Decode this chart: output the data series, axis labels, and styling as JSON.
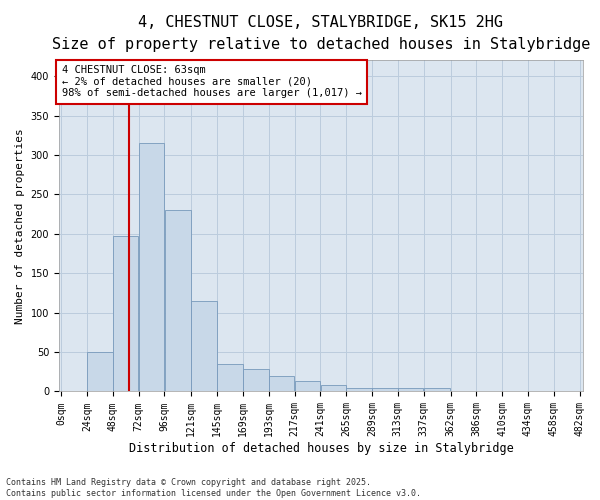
{
  "title_line1": "4, CHESTNUT CLOSE, STALYBRIDGE, SK15 2HG",
  "title_line2": "Size of property relative to detached houses in Stalybridge",
  "xlabel": "Distribution of detached houses by size in Stalybridge",
  "ylabel": "Number of detached properties",
  "footnote": "Contains HM Land Registry data © Crown copyright and database right 2025.\nContains public sector information licensed under the Open Government Licence v3.0.",
  "annotation_title": "4 CHESTNUT CLOSE: 63sqm",
  "annotation_line2": "← 2% of detached houses are smaller (20)",
  "annotation_line3": "98% of semi-detached houses are larger (1,017) →",
  "property_size": 63,
  "bin_edges": [
    0,
    24,
    48,
    72,
    96,
    121,
    145,
    169,
    193,
    217,
    241,
    265,
    289,
    313,
    337,
    362,
    386,
    410,
    434,
    458,
    482
  ],
  "bar_heights": [
    0,
    50,
    197,
    315,
    230,
    115,
    35,
    28,
    20,
    13,
    8,
    5,
    5,
    4,
    4,
    1,
    1,
    0,
    0,
    1
  ],
  "bar_color": "#c8d8e8",
  "bar_edge_color": "#7799bb",
  "vline_color": "#cc0000",
  "annotation_box_color": "#cc0000",
  "annotation_bg": "#ffffff",
  "grid_color": "#bbccdd",
  "background_color": "#dce6f0",
  "ylim": [
    0,
    420
  ],
  "yticks": [
    0,
    50,
    100,
    150,
    200,
    250,
    300,
    350,
    400
  ],
  "title_fontsize": 11,
  "subtitle_fontsize": 9.5,
  "xlabel_fontsize": 8.5,
  "ylabel_fontsize": 8,
  "tick_fontsize": 7,
  "annotation_fontsize": 7.5
}
